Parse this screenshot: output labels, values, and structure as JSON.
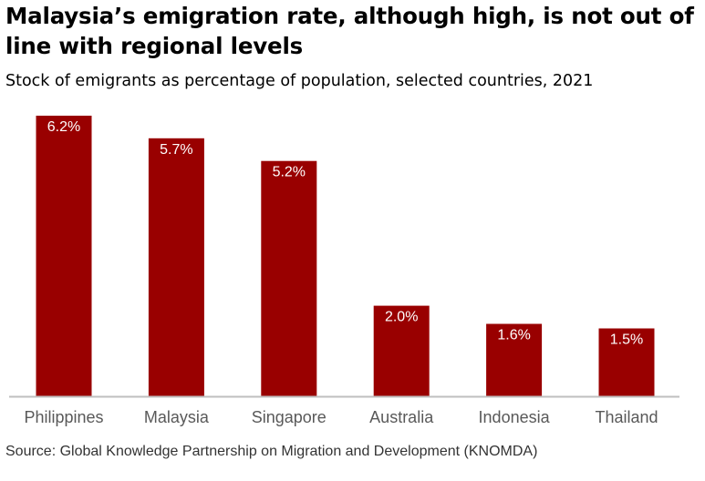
{
  "title": "Malaysia’s emigration rate, although high, is not out of line with regional levels",
  "subtitle": "Stock of emigrants as percentage of population, selected countries, 2021",
  "source": "Source:  Global Knowledge Partnership on Migration and Development (KNOMDA)",
  "colors": {
    "bar": "#990000",
    "label": "#ffffff",
    "axis": "#bfbfbf",
    "tick_text": "#595959"
  },
  "chart_data": {
    "type": "bar",
    "categories": [
      "Philippines",
      "Malaysia",
      "Singapore",
      "Australia",
      "Indonesia",
      "Thailand"
    ],
    "values": [
      6.2,
      5.7,
      5.2,
      2.0,
      1.6,
      1.5
    ],
    "data_labels": [
      "6.2%",
      "5.7%",
      "5.2%",
      "2.0%",
      "1.6%",
      "1.5%"
    ],
    "ylim": [
      0,
      6.2
    ],
    "grid": false,
    "legend": "none"
  }
}
